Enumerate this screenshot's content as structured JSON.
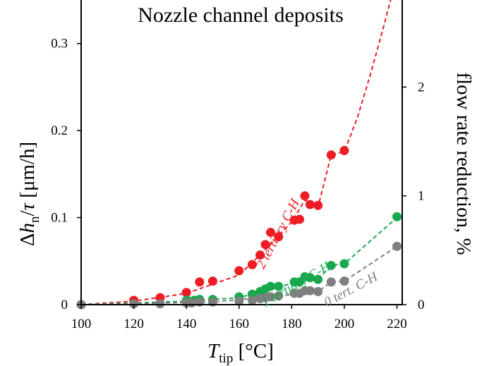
{
  "chart_data": {
    "type": "scatter",
    "title": "Nozzle channel deposits",
    "xlabel": {
      "base": "T",
      "sub": "tip",
      "unit": " [°C]"
    },
    "ylabel": {
      "delta": "Δ",
      "h": "h",
      "sub": "n",
      "slash": "/",
      "tau": "τ",
      "unit": " [μm/h]"
    },
    "y2label": "flow rate reduction, %",
    "xlim": [
      100,
      222
    ],
    "ylim": [
      0,
      0.35
    ],
    "y2lim": [
      0,
      2.8
    ],
    "xticks": [
      100,
      120,
      140,
      160,
      180,
      200,
      220
    ],
    "yticks": [
      0,
      0.1,
      0.2,
      0.3
    ],
    "yticklabels": [
      "0",
      "0.1",
      "0.2",
      "0.3"
    ],
    "y2ticks": [
      0,
      1,
      2
    ],
    "y2ticklabels": [
      "0",
      "1",
      "2"
    ],
    "grid": false,
    "legend": "none",
    "series": [
      {
        "name": "2 tertiary C-H",
        "color": "#ee1c25",
        "points": [
          [
            100,
            0.0
          ],
          [
            120,
            0.005
          ],
          [
            130,
            0.008
          ],
          [
            140,
            0.014
          ],
          [
            145,
            0.026
          ],
          [
            150,
            0.027
          ],
          [
            160,
            0.039
          ],
          [
            165,
            0.046
          ],
          [
            168,
            0.057
          ],
          [
            170,
            0.069
          ],
          [
            172,
            0.083
          ],
          [
            175,
            0.078
          ],
          [
            181,
            0.097
          ],
          [
            183,
            0.098
          ],
          [
            185,
            0.125
          ],
          [
            187,
            0.115
          ],
          [
            190,
            0.114
          ],
          [
            195,
            0.172
          ],
          [
            200,
            0.177
          ]
        ],
        "curve": [
          [
            100,
            0.0
          ],
          [
            120,
            0.004
          ],
          [
            140,
            0.013
          ],
          [
            160,
            0.034
          ],
          [
            170,
            0.063
          ],
          [
            180,
            0.095
          ],
          [
            185,
            0.12
          ],
          [
            190,
            0.112
          ],
          [
            195,
            0.172
          ],
          [
            200,
            0.176
          ],
          [
            205,
            0.215
          ],
          [
            210,
            0.265
          ],
          [
            215,
            0.32
          ],
          [
            218,
            0.355
          ]
        ]
      },
      {
        "name": "1 tertiary C-H",
        "color": "#18a84d",
        "points": [
          [
            100,
            0.0
          ],
          [
            140,
            0.005
          ],
          [
            141,
            0.004
          ],
          [
            143,
            0.005
          ],
          [
            145,
            0.006
          ],
          [
            150,
            0.006
          ],
          [
            160,
            0.009
          ],
          [
            165,
            0.012
          ],
          [
            168,
            0.015
          ],
          [
            170,
            0.018
          ],
          [
            172,
            0.021
          ],
          [
            175,
            0.021
          ],
          [
            181,
            0.026
          ],
          [
            183,
            0.026
          ],
          [
            185,
            0.032
          ],
          [
            187,
            0.031
          ],
          [
            190,
            0.029
          ],
          [
            195,
            0.045
          ],
          [
            200,
            0.047
          ],
          [
            220,
            0.101
          ]
        ],
        "curve": [
          [
            100,
            0.0
          ],
          [
            140,
            0.004
          ],
          [
            160,
            0.008
          ],
          [
            175,
            0.02
          ],
          [
            185,
            0.029
          ],
          [
            190,
            0.029
          ],
          [
            195,
            0.045
          ],
          [
            200,
            0.047
          ],
          [
            220,
            0.1
          ]
        ]
      },
      {
        "name": "0 tert. C-H",
        "color": "#7f7f7f",
        "points": [
          [
            100,
            0.0
          ],
          [
            120,
            0.001
          ],
          [
            130,
            0.001
          ],
          [
            140,
            0.002
          ],
          [
            142,
            0.002
          ],
          [
            145,
            0.003
          ],
          [
            150,
            0.003
          ],
          [
            160,
            0.004
          ],
          [
            165,
            0.005
          ],
          [
            168,
            0.007
          ],
          [
            170,
            0.008
          ],
          [
            172,
            0.009
          ],
          [
            175,
            0.01
          ],
          [
            181,
            0.013
          ],
          [
            183,
            0.013
          ],
          [
            185,
            0.016
          ],
          [
            187,
            0.016
          ],
          [
            190,
            0.015
          ],
          [
            195,
            0.026
          ],
          [
            200,
            0.027
          ],
          [
            220,
            0.067
          ]
        ],
        "curve": [
          [
            100,
            0.0
          ],
          [
            150,
            0.003
          ],
          [
            175,
            0.01
          ],
          [
            190,
            0.015
          ],
          [
            195,
            0.026
          ],
          [
            200,
            0.027
          ],
          [
            220,
            0.067
          ]
        ]
      }
    ]
  }
}
